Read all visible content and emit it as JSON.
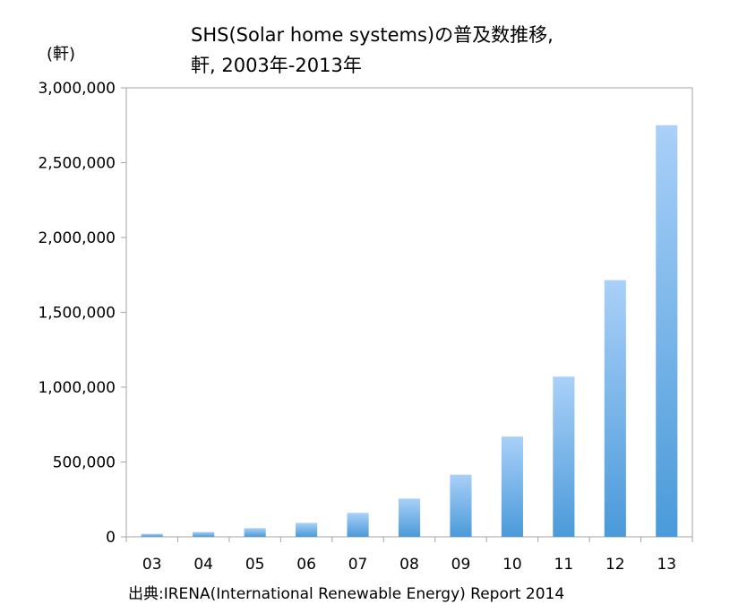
{
  "chart_data": {
    "type": "bar",
    "title_line1": "SHS(Solar home systems)の普及数推移,",
    "title_line2": "軒, 2003年-2013年",
    "unit_label": "(軒)",
    "categories": [
      "03",
      "04",
      "05",
      "06",
      "07",
      "08",
      "09",
      "10",
      "11",
      "12",
      "13"
    ],
    "values": [
      20000,
      32000,
      58000,
      93000,
      160000,
      255000,
      415000,
      670000,
      1070000,
      1715000,
      2750000
    ],
    "y_ticks": [
      "0",
      "500,000",
      "1,000,000",
      "1,500,000",
      "2,000,000",
      "2,500,000",
      "3,000,000"
    ],
    "ylim": [
      0,
      3000000
    ],
    "grid": false,
    "bar_color_top": "#a9d0f8",
    "bar_color_bottom": "#4a9ad9",
    "source": "出典:IRENA(International Renewable Energy) Report 2014"
  }
}
